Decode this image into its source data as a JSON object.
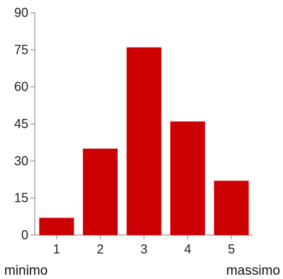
{
  "chart_data": {
    "type": "bar",
    "categories": [
      "1",
      "2",
      "3",
      "4",
      "5"
    ],
    "values": [
      7,
      35,
      76,
      46,
      22
    ],
    "ylim": [
      0,
      90
    ],
    "yticks": [
      "0",
      "15",
      "30",
      "45",
      "60",
      "75",
      "90"
    ],
    "grid": false,
    "bar_color": "#cc0000",
    "axis_color": "#7f7f7f"
  },
  "scale_labels": {
    "min": "minimo",
    "max": "massimo"
  }
}
